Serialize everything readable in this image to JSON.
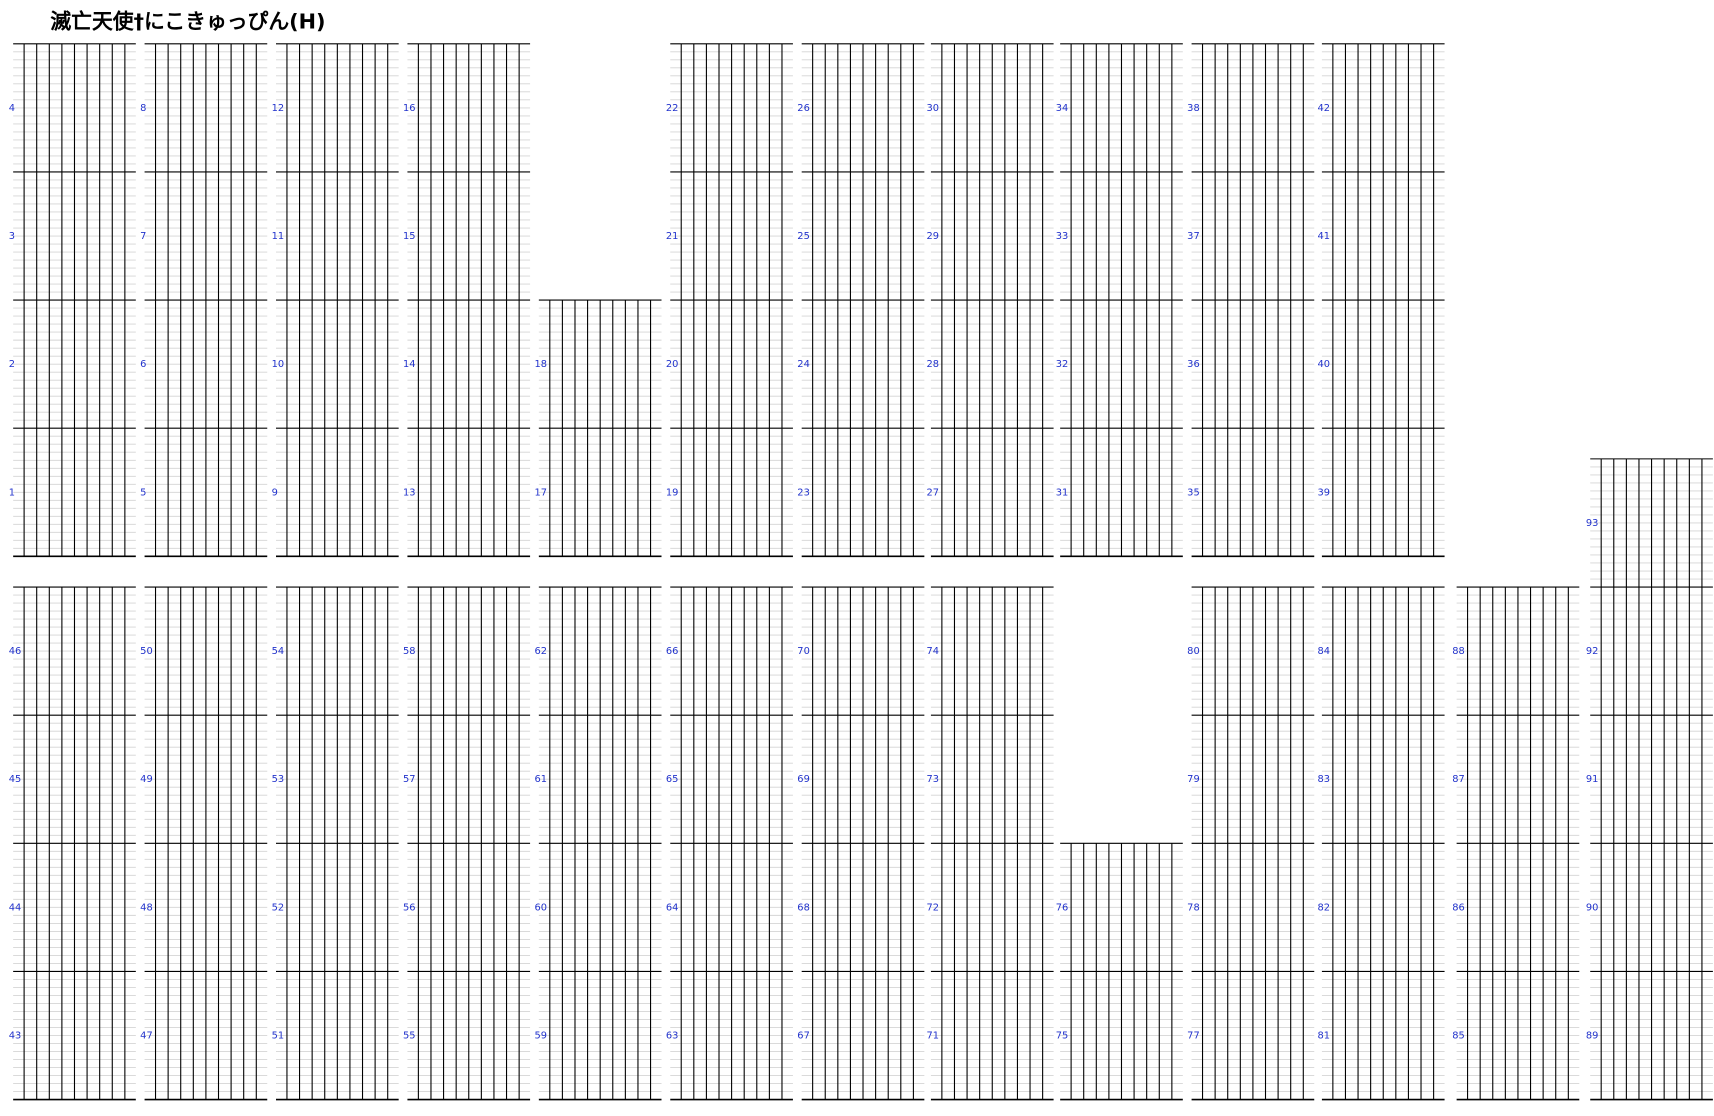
{
  "title": "滅亡天使†にこきゅっぴん(H)",
  "rows": [
    [
      [
        1,
        2,
        3,
        4
      ],
      [
        5,
        6,
        7,
        8
      ],
      [
        9,
        10,
        11,
        12
      ],
      [
        13,
        14,
        15,
        16
      ],
      [
        17,
        18
      ],
      [
        19,
        20,
        21,
        22
      ],
      [
        23,
        24,
        25,
        26
      ],
      [
        27,
        28,
        29,
        30
      ],
      [
        31,
        32,
        33,
        34
      ],
      [
        35,
        36,
        37,
        38
      ],
      [
        39,
        40,
        41,
        42
      ]
    ],
    [
      [
        43,
        44,
        45,
        46
      ],
      [
        47,
        48,
        49,
        50
      ],
      [
        51,
        52,
        53,
        54
      ],
      [
        55,
        56,
        57,
        58
      ],
      [
        59,
        60,
        61,
        62
      ],
      [
        63,
        64,
        65,
        66
      ],
      [
        67,
        68,
        69,
        70
      ],
      [
        71,
        72,
        73,
        74
      ],
      [
        75,
        76
      ],
      [
        77,
        78,
        79,
        80
      ],
      [
        81,
        82,
        83,
        84
      ],
      [
        85,
        86,
        87,
        88
      ],
      [
        89,
        90,
        91,
        92,
        93
      ]
    ]
  ]
}
